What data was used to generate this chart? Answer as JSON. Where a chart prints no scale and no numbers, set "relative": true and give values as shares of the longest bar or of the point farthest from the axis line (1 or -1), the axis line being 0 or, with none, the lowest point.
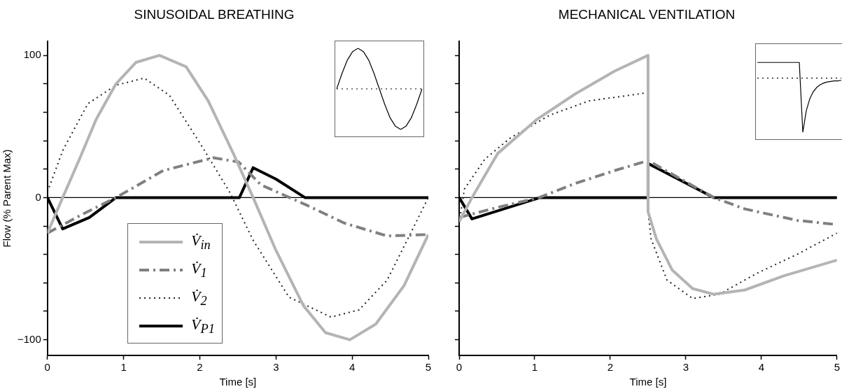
{
  "chart_data": [
    {
      "type": "line",
      "title": "SINUSOIDAL BREATHING",
      "xlabel": "Time [s]",
      "ylabel": "Flow (% Parent Max)",
      "xlim": [
        0,
        5
      ],
      "xticks": [
        0,
        1,
        2,
        3,
        4,
        5
      ],
      "ylim": [
        -111,
        110
      ],
      "yticks": [
        {
          "value": -100,
          "label": "−100"
        },
        {
          "value": -80,
          "label": null
        },
        {
          "value": -60,
          "label": null
        },
        {
          "value": -40,
          "label": null
        },
        {
          "value": -20,
          "label": null
        },
        0,
        {
          "value": 20,
          "label": null
        },
        {
          "value": 40,
          "label": null
        },
        {
          "value": 60,
          "label": null
        },
        {
          "value": 80,
          "label": null
        },
        100
      ],
      "grid": false,
      "legend": "bottom left",
      "marker": "none",
      "ref_lines": [
        {
          "axis": "y",
          "value": 0,
          "color": "#000000"
        }
      ],
      "series": [
        {
          "name": "V̇$_{in}$",
          "color": "#b4b4b4",
          "line_style": "solid",
          "x": [
            0,
            0.2,
            0.42,
            0.64,
            0.9,
            1.16,
            1.47,
            1.82,
            2.11,
            2.44,
            2.7,
            2.99,
            3.36,
            3.65,
            3.97,
            4.31,
            4.68,
            5
          ],
          "values": [
            -25,
            0,
            27,
            55,
            80,
            95,
            100,
            92,
            68,
            31,
            0,
            -36,
            -76,
            -95,
            -100,
            -89,
            -62,
            -26
          ]
        },
        {
          "name": "V̇$_{1}$",
          "color": "#808080",
          "line_style": "dashed",
          "x": [
            0,
            0.45,
            0.9,
            1.52,
            2.18,
            2.51,
            2.8,
            3.39,
            3.9,
            4.46,
            5
          ],
          "values": [
            -25,
            -12,
            0,
            19,
            28,
            25,
            9,
            -5,
            -18,
            -27,
            -26
          ]
        },
        {
          "name": "V̇$_{2}$",
          "color": "#222222",
          "line_style": "dotted",
          "x": [
            0,
            0.2,
            0.53,
            0.9,
            1.27,
            1.6,
            2.04,
            2.4,
            2.7,
            3.17,
            3.72,
            4.09,
            4.46,
            5
          ],
          "values": [
            4,
            33,
            66,
            79,
            84,
            72,
            35,
            3,
            -30,
            -70,
            -84,
            -79,
            -58,
            0
          ]
        },
        {
          "name": "V̇$_{P1}$",
          "color": "#000000",
          "line_style": "solid",
          "x": [
            0,
            0.2,
            0.55,
            0.9,
            2.52,
            2.7,
            3.0,
            3.38,
            5
          ],
          "values": [
            0,
            -22,
            -14,
            0,
            0,
            21,
            13,
            0,
            0
          ]
        }
      ]
    },
    {
      "type": "line",
      "title": "MECHANICAL VENTILATION",
      "xlabel": "Time [s]",
      "xlim": [
        0,
        5
      ],
      "xticks": [
        0,
        1,
        2,
        3,
        4,
        5
      ],
      "ylim": [
        -111,
        110
      ],
      "yticks": [
        {
          "value": -100,
          "label": null
        },
        {
          "value": -80,
          "label": null
        },
        {
          "value": -60,
          "label": null
        },
        {
          "value": -40,
          "label": null
        },
        {
          "value": -20,
          "label": null
        },
        {
          "value": 0,
          "label": null
        },
        {
          "value": 20,
          "label": null
        },
        {
          "value": 40,
          "label": null
        },
        {
          "value": 60,
          "label": null
        },
        {
          "value": 80,
          "label": null
        },
        {
          "value": 100,
          "label": null
        }
      ],
      "tick_labels": "x",
      "grid": false,
      "marker": "none",
      "ref_lines": [
        {
          "axis": "y",
          "value": 0,
          "color": "#000000"
        }
      ],
      "series": [
        {
          "color": "#b4b4b4",
          "line_style": "solid",
          "x": [
            0,
            0.17,
            0.51,
            1.03,
            1.54,
            2.06,
            2.5,
            2.5,
            2.61,
            2.82,
            3.09,
            3.37,
            3.78,
            4.3,
            5
          ],
          "values": [
            -17,
            0,
            31,
            55,
            73,
            89,
            100,
            -10,
            -29,
            -51,
            -64,
            -68,
            -65,
            -55,
            -44
          ]
        },
        {
          "color": "#808080",
          "line_style": "dashed",
          "x": [
            0,
            0.5,
            1.06,
            1.54,
            2.06,
            2.5,
            3.37,
            3.78,
            4.47,
            5
          ],
          "values": [
            -14,
            -7,
            0,
            10,
            19,
            26,
            0,
            -8,
            -16,
            -19
          ]
        },
        {
          "color": "#222222",
          "line_style": "dotted",
          "x": [
            0,
            0.07,
            0.34,
            0.68,
            1.2,
            1.72,
            2.4,
            2.5,
            2.5,
            2.54,
            2.75,
            3.09,
            3.44,
            3.95,
            4.47,
            5
          ],
          "values": [
            -18,
            6,
            27,
            42,
            58,
            68,
            73,
            74,
            -10,
            -29,
            -58,
            -71,
            -68,
            -53,
            -40,
            -25
          ]
        },
        {
          "color": "#000000",
          "line_style": "solid",
          "x": [
            0,
            0.17,
            1.07,
            2.5,
            2.5,
            3.37,
            5
          ],
          "values": [
            0,
            -15,
            0,
            0,
            24,
            0,
            0
          ]
        }
      ]
    },
    {
      "type": "line",
      "relative": true,
      "tick_labels": false,
      "grid": false,
      "marker": "none",
      "ref_lines": [
        {
          "axis": "y",
          "value": 0,
          "color": "#000000",
          "line_style": "dotted"
        }
      ],
      "categories": [
        null,
        null,
        null,
        null,
        null,
        null,
        null,
        null,
        null,
        null,
        null,
        null,
        null,
        null,
        null,
        null,
        null
      ],
      "series": [
        {
          "color": "#000000",
          "line_style": "solid",
          "values": [
            0,
            0.38,
            0.71,
            0.92,
            1,
            0.92,
            0.71,
            0.38,
            0,
            -0.38,
            -0.71,
            -0.92,
            -1,
            -0.92,
            -0.71,
            -0.38,
            0
          ]
        }
      ]
    },
    {
      "type": "line",
      "relative": true,
      "tick_labels": false,
      "grid": false,
      "marker": "none",
      "ref_lines": [
        {
          "axis": "y",
          "value": 0,
          "color": "#000000",
          "line_style": "dotted"
        }
      ],
      "categories": [
        null,
        null,
        null,
        null,
        null,
        null,
        null,
        null,
        null,
        null,
        null,
        null,
        null,
        null,
        null,
        null,
        null,
        null,
        null,
        null,
        null,
        null,
        null,
        null,
        null
      ],
      "series": [
        {
          "color": "#000000",
          "line_style": "solid",
          "values": [
            0.29,
            0.29,
            0.29,
            0.29,
            0.29,
            0.29,
            0.29,
            0.29,
            0.29,
            0.29,
            0.29,
            0.29,
            0.29,
            -1,
            -0.6,
            -0.38,
            -0.25,
            -0.17,
            -0.12,
            -0.09,
            -0.07,
            -0.06,
            -0.05,
            -0.05,
            -0.04
          ]
        }
      ]
    }
  ]
}
